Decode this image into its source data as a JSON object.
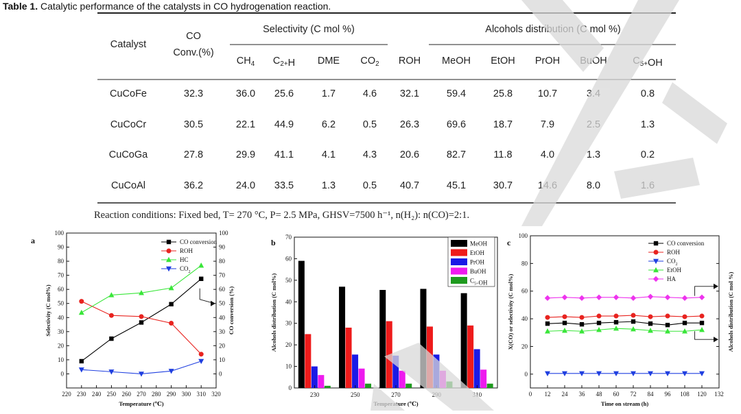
{
  "table": {
    "title_bold": "Table 1.",
    "title_rest": " Catalytic performance of the catalysts in CO hydrogenation reaction.",
    "group_headers": {
      "catalyst": "Catalyst",
      "co_conv_line1": "CO",
      "co_conv_line2": "Conv.(%)",
      "selectivity": "Selectivity (C mol %)",
      "alcohols": "Alcohols distribution (C mol %)"
    },
    "sub_headers": [
      "CH4",
      "C2+H",
      "DME",
      "CO2",
      "ROH",
      "MeOH",
      "EtOH",
      "PrOH",
      "BuOH",
      "C5+OH"
    ],
    "rows": [
      {
        "catalyst": "CuCoFe",
        "values": [
          "32.3",
          "36.0",
          "25.6",
          "1.7",
          "4.6",
          "32.1",
          "59.4",
          "25.8",
          "10.7",
          "3.4",
          "0.8"
        ]
      },
      {
        "catalyst": "CuCoCr",
        "values": [
          "30.5",
          "22.1",
          "44.9",
          "6.2",
          "0.5",
          "26.3",
          "69.6",
          "18.7",
          "7.9",
          "2.5",
          "1.3"
        ]
      },
      {
        "catalyst": "CuCoGa",
        "values": [
          "27.8",
          "29.9",
          "41.1",
          "4.1",
          "4.3",
          "20.6",
          "82.7",
          "11.8",
          "4.0",
          "1.3",
          "0.2"
        ]
      },
      {
        "catalyst": "CuCoAl",
        "values": [
          "36.2",
          "24.0",
          "33.5",
          "1.3",
          "0.5",
          "40.7",
          "45.1",
          "30.7",
          "14.6",
          "8.0",
          "1.6"
        ]
      }
    ],
    "conditions": "Reaction conditions: Fixed bed, T= 270 °C, P= 2.5 MPa, GHSV=7500 h⁻¹, n(H₂): n(CO)=2:1."
  },
  "chart_data": [
    {
      "panel": "a",
      "type": "line",
      "xlabel": "Temperature (℃)",
      "ylabel": "Selectivity (C mol%)",
      "y2label": "CO conversion (%)",
      "xlim": [
        220,
        320
      ],
      "xticks": [
        "220",
        "230",
        "240",
        "250",
        "260",
        "270",
        "280",
        "290",
        "300",
        "310",
        "320"
      ],
      "ylim": [
        -10,
        100
      ],
      "yticks": [
        "0",
        "10",
        "20",
        "30",
        "40",
        "50",
        "60",
        "70",
        "80",
        "90",
        "100"
      ],
      "legend_position": "top-right",
      "series": [
        {
          "name": "CO conversion",
          "axis": "right",
          "color": "#000000",
          "marker": "square",
          "x": [
            230,
            250,
            270,
            290,
            310
          ],
          "y": [
            9,
            25,
            36.5,
            49.5,
            67.5
          ]
        },
        {
          "name": "ROH",
          "axis": "left",
          "color": "#e8231f",
          "marker": "circle",
          "x": [
            230,
            250,
            270,
            290,
            310
          ],
          "y": [
            51.5,
            41.5,
            40.7,
            36,
            14
          ]
        },
        {
          "name": "HC",
          "axis": "left",
          "color": "#39e639",
          "marker": "triangle-up",
          "x": [
            230,
            250,
            270,
            290,
            310
          ],
          "y": [
            43.5,
            56,
            57.5,
            61,
            77
          ]
        },
        {
          "name": "CO2",
          "axis": "left",
          "color": "#1f3fe0",
          "marker": "triangle-down",
          "x": [
            230,
            250,
            270,
            290,
            310
          ],
          "y": [
            3,
            1.5,
            0,
            2,
            9
          ]
        }
      ],
      "annotation": "arrow from CO conversion curve to right axis"
    },
    {
      "panel": "b",
      "type": "bar",
      "xlabel": "Temperature (℃)",
      "ylabel": "Alcohols distribution (C mol%)",
      "ylim": [
        0,
        70
      ],
      "yticks": [
        "0",
        "10",
        "20",
        "30",
        "40",
        "50",
        "60",
        "70"
      ],
      "categories": [
        "230",
        "250",
        "270",
        "290",
        "310"
      ],
      "legend_position": "top-right",
      "series": [
        {
          "name": "MeOH",
          "color": "#000000",
          "values": [
            59,
            47,
            45.5,
            46,
            44
          ]
        },
        {
          "name": "EtOH",
          "color": "#ee1b1b",
          "values": [
            25,
            28,
            31,
            28.5,
            29
          ]
        },
        {
          "name": "PrOH",
          "color": "#1a1ae6",
          "values": [
            10,
            15.5,
            15,
            15.5,
            18
          ]
        },
        {
          "name": "BuOH",
          "color": "#ee1bee",
          "values": [
            6,
            9,
            8,
            8,
            8.5
          ]
        },
        {
          "name": "C5+OH",
          "color": "#1e9a1e",
          "values": [
            1,
            2,
            2,
            3,
            2
          ]
        }
      ]
    },
    {
      "panel": "c",
      "type": "line",
      "xlabel": "Time on stream (h)",
      "ylabel": "X(CO) or selectivity (C mol%)",
      "y2label": "Alcohols distribution (C mol %)",
      "xlim": [
        0,
        132
      ],
      "xticks": [
        "0",
        "12",
        "24",
        "36",
        "48",
        "60",
        "72",
        "84",
        "96",
        "108",
        "120",
        "132"
      ],
      "ylim": [
        -10,
        100
      ],
      "yticks": [
        "0",
        "20",
        "40",
        "60",
        "80",
        "100"
      ],
      "legend_position": "top-right",
      "series": [
        {
          "name": "CO conversion",
          "color": "#000000",
          "marker": "square",
          "x": [
            12,
            24,
            36,
            48,
            60,
            72,
            84,
            96,
            108,
            120
          ],
          "y": [
            36.5,
            37,
            36,
            37,
            37.5,
            38,
            36.5,
            35.5,
            37,
            37
          ]
        },
        {
          "name": "ROH",
          "color": "#e8231f",
          "marker": "circle",
          "x": [
            12,
            24,
            36,
            48,
            60,
            72,
            84,
            96,
            108,
            120
          ],
          "y": [
            41,
            41.5,
            41,
            42,
            42,
            42.5,
            41.5,
            42,
            41.5,
            42
          ]
        },
        {
          "name": "CO2",
          "color": "#1f3fe0",
          "marker": "triangle-down",
          "x": [
            12,
            24,
            36,
            48,
            60,
            72,
            84,
            96,
            108,
            120
          ],
          "y": [
            0.5,
            0.5,
            0.5,
            0.5,
            0.5,
            0.5,
            0.5,
            0.5,
            0.5,
            0.5
          ]
        },
        {
          "name": "EtOH",
          "color": "#39e639",
          "marker": "triangle-up",
          "x": [
            12,
            24,
            36,
            48,
            60,
            72,
            84,
            96,
            108,
            120
          ],
          "y": [
            31,
            31.5,
            31,
            32,
            33,
            32.5,
            31.5,
            31,
            31,
            32
          ]
        },
        {
          "name": "HA",
          "color": "#ee33ee",
          "marker": "diamond",
          "x": [
            12,
            24,
            36,
            48,
            60,
            72,
            84,
            96,
            108,
            120
          ],
          "y": [
            55,
            55.5,
            55,
            55.5,
            55.5,
            55,
            56,
            55.5,
            55,
            55.5
          ]
        }
      ],
      "annotation": "arrows from HA and EtOH curves to right axis"
    }
  ],
  "panel_labels": {
    "a": "a",
    "b": "b",
    "c": "c"
  },
  "watermark": {
    "text": "WILEY-VCH",
    "color": "#d9d9d9"
  }
}
